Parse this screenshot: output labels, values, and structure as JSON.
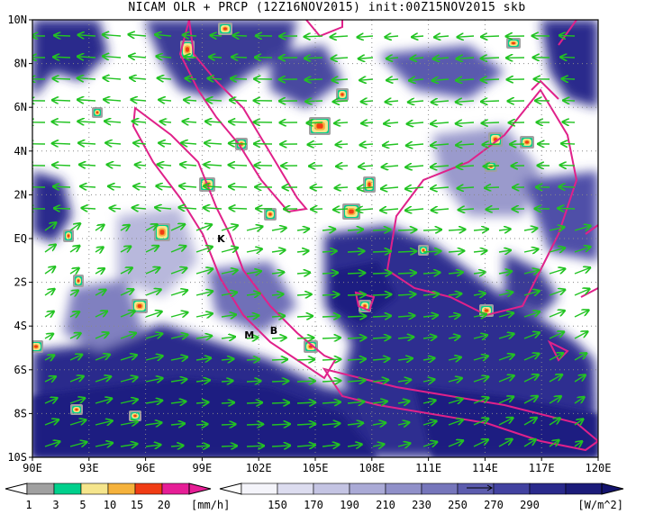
{
  "title": "NICAM OLR + PRCP (12Z16NOV2015) init:00Z15NOV2015 skb",
  "map": {
    "lon_range": [
      90,
      120
    ],
    "lat_range": [
      -10,
      10
    ],
    "lon_ticks": [
      "90E",
      "93E",
      "96E",
      "99E",
      "102E",
      "105E",
      "108E",
      "111E",
      "114E",
      "117E",
      "120E"
    ],
    "lat_ticks": [
      "10N",
      "8N",
      "6N",
      "4N",
      "2N",
      "EQ",
      "2S",
      "4S",
      "6S",
      "8S",
      "10S"
    ],
    "grid": "dotted",
    "markers": [
      {
        "label": "K",
        "lon": 100.0,
        "lat": 0.0
      },
      {
        "label": "M",
        "lon": 101.5,
        "lat": -4.4
      },
      {
        "label": "B",
        "lon": 102.8,
        "lat": -4.2
      }
    ],
    "colors": {
      "olr_cold": "#2a2a8c",
      "coastline": "#e0218a",
      "wind_vector": "#22c322",
      "precip_rain": "#e01414"
    }
  },
  "precip_colorbar": {
    "labels": [
      "1",
      "3",
      "5",
      "10",
      "15",
      "20"
    ],
    "unit": "[mm/h]",
    "colors": [
      "#a0a0a0",
      "#00d08c",
      "#f5e58c",
      "#f5b23c",
      "#f03c14",
      "#e61e96"
    ]
  },
  "olr_colorbar": {
    "labels": [
      "150",
      "170",
      "190",
      "210",
      "230",
      "250",
      "270",
      "290"
    ],
    "unit": "[W/m^2]",
    "colors": [
      "#f4f4fa",
      "#dcdcef",
      "#c4c4e3",
      "#aaaad6",
      "#9090c9",
      "#7676bb",
      "#5c5cae",
      "#4242a0",
      "#2a2a8c",
      "#1c1c7a"
    ]
  }
}
